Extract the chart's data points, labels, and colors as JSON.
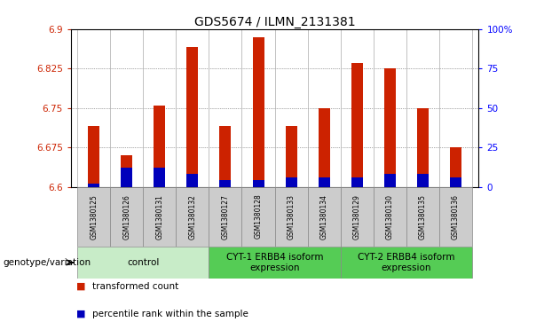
{
  "title": "GDS5674 / ILMN_2131381",
  "samples": [
    "GSM1380125",
    "GSM1380126",
    "GSM1380131",
    "GSM1380132",
    "GSM1380127",
    "GSM1380128",
    "GSM1380133",
    "GSM1380134",
    "GSM1380129",
    "GSM1380130",
    "GSM1380135",
    "GSM1380136"
  ],
  "transformed_counts": [
    6.715,
    6.66,
    6.755,
    6.865,
    6.715,
    6.885,
    6.715,
    6.75,
    6.835,
    6.825,
    6.75,
    6.675
  ],
  "percentile_ranks_right": [
    2,
    12,
    12,
    8,
    4,
    4,
    6,
    6,
    6,
    8,
    8,
    6
  ],
  "bar_base": 6.6,
  "ylim_left": [
    6.6,
    6.9
  ],
  "ylim_right": [
    0,
    100
  ],
  "yticks_left": [
    6.6,
    6.675,
    6.75,
    6.825,
    6.9
  ],
  "yticks_right": [
    0,
    25,
    50,
    75,
    100
  ],
  "ytick_labels_left": [
    "6.6",
    "6.675",
    "6.75",
    "6.825",
    "6.9"
  ],
  "ytick_labels_right": [
    "0",
    "25",
    "50",
    "75",
    "100%"
  ],
  "red_color": "#CC2200",
  "blue_color": "#0000BB",
  "grid_color": "#555555",
  "groups": [
    {
      "label": "control",
      "start": 0,
      "end": 4,
      "color": "#c8ecc8"
    },
    {
      "label": "CYT-1 ERBB4 isoform\nexpression",
      "start": 4,
      "end": 8,
      "color": "#55cc55"
    },
    {
      "label": "CYT-2 ERBB4 isoform\nexpression",
      "start": 8,
      "end": 12,
      "color": "#55cc55"
    }
  ],
  "xlabel_label": "genotype/variation",
  "legend_red": "transformed count",
  "legend_blue": "percentile rank within the sample",
  "bar_width": 0.35,
  "title_fontsize": 10,
  "tick_fontsize": 7.5,
  "sample_fontsize": 5.5,
  "group_fontsize": 7.5
}
